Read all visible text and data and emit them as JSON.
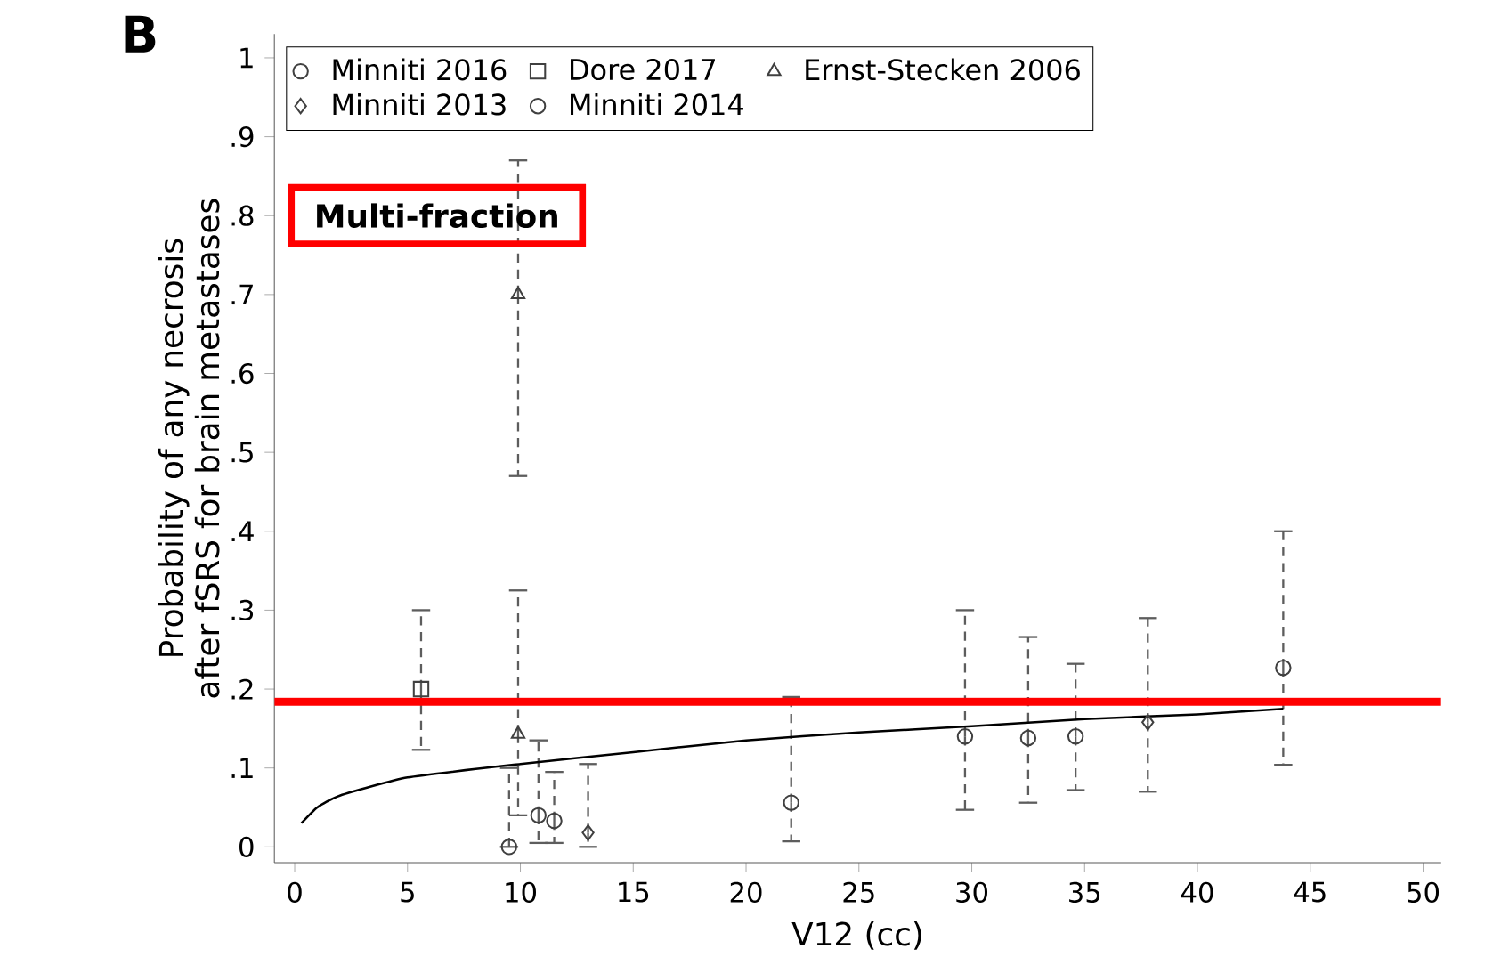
{
  "chart_data": {
    "type": "scatter",
    "xlabel": "V12 (cc)",
    "ylabel": "Probability of any necrosis after fSRS for brain metastases",
    "annotations": [
      "B",
      "Multi-fraction"
    ],
    "xlim": [
      -0.9,
      50.8
    ],
    "ylim": [
      -0.02,
      1.03
    ],
    "xticks": [
      0,
      5,
      10,
      15,
      20,
      25,
      30,
      35,
      40,
      45,
      50
    ],
    "yticks": [
      0,
      {
        "value": 0.1,
        "label": ".1"
      },
      {
        "value": 0.2,
        "label": ".2"
      },
      {
        "value": 0.3,
        "label": ".3"
      },
      {
        "value": 0.4,
        "label": ".4"
      },
      {
        "value": 0.5,
        "label": ".5"
      },
      {
        "value": 0.6,
        "label": ".6"
      },
      {
        "value": 0.7,
        "label": ".7"
      },
      {
        "value": 0.8,
        "label": ".8"
      },
      {
        "value": 0.9,
        "label": ".9"
      },
      1
    ],
    "grid": false,
    "legend": "top",
    "ref_lines": [
      {
        "axis": "y",
        "value": 0.184,
        "color": "#ff0000"
      }
    ],
    "series": [
      {
        "name": "Minniti 2016",
        "marker": "circle",
        "color": "#404040",
        "x": [
          9.5,
          22.0,
          29.7,
          43.8
        ],
        "values": [
          0.0,
          0.056,
          0.14,
          0.227
        ],
        "errors": [
          [
            0.0,
            0.1
          ],
          [
            0.007,
            0.19
          ],
          [
            0.047,
            0.3
          ],
          [
            0.104,
            0.4
          ]
        ]
      },
      {
        "name": "Dore 2017",
        "marker": "square",
        "color": "#404040",
        "x": [
          5.6
        ],
        "values": [
          0.2
        ],
        "errors": [
          [
            0.123,
            0.3
          ]
        ]
      },
      {
        "name": "Ernst-Stecken 2006",
        "marker": "triangle",
        "color": "#404040",
        "x": [
          9.9,
          9.9
        ],
        "values": [
          0.7,
          0.143
        ],
        "errors": [
          [
            0.47,
            0.87
          ],
          [
            0.04,
            0.325
          ]
        ]
      },
      {
        "name": "Minniti 2013",
        "marker": "diamond",
        "color": "#404040",
        "x": [
          13.0,
          37.8
        ],
        "values": [
          0.018,
          0.158
        ],
        "errors": [
          [
            0.0,
            0.105
          ],
          [
            0.07,
            0.29
          ]
        ]
      },
      {
        "name": "Minniti 2014",
        "marker": "circle",
        "color": "#404040",
        "x": [
          10.8,
          11.5,
          32.5,
          34.6
        ],
        "values": [
          0.04,
          0.033,
          0.138,
          0.14
        ],
        "errors": [
          [
            0.005,
            0.135
          ],
          [
            0.005,
            0.095
          ],
          [
            0.056,
            0.266
          ],
          [
            0.072,
            0.232
          ]
        ]
      },
      {
        "type": "line",
        "marker": "none",
        "color": "#000000",
        "x": [
          0.3,
          1,
          2,
          5,
          10,
          15,
          20,
          25,
          30,
          35,
          40,
          43.8
        ],
        "values": [
          0.03,
          0.05,
          0.065,
          0.088,
          0.105,
          0.12,
          0.135,
          0.145,
          0.153,
          0.162,
          0.168,
          0.175
        ]
      }
    ]
  }
}
